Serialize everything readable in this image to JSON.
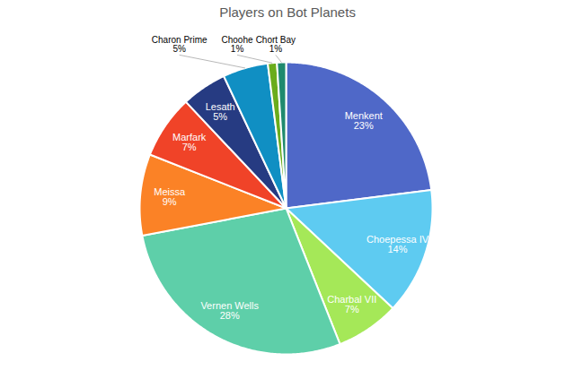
{
  "chart_data": {
    "type": "pie",
    "title": "Players on Bot Planets",
    "categories": [
      "Menkent",
      "Choepessa IV",
      "Charbal VII",
      "Vernen Wells",
      "Meissa",
      "Marfark",
      "Lesath",
      "Charon Prime",
      "Choohe",
      "Chort Bay"
    ],
    "values": [
      23,
      14,
      7,
      28,
      9,
      7,
      5,
      5,
      1,
      1
    ],
    "value_labels": [
      "23%",
      "14%",
      "7%",
      "28%",
      "9%",
      "7%",
      "5%",
      "5%",
      "1%",
      "1%"
    ],
    "colors": [
      "#4f68c8",
      "#5ecbf1",
      "#a5e858",
      "#5ecfa9",
      "#fb8226",
      "#f04328",
      "#263b82",
      "#108fc3",
      "#6aac1c",
      "#1f8a6e"
    ],
    "data_labels": true
  }
}
